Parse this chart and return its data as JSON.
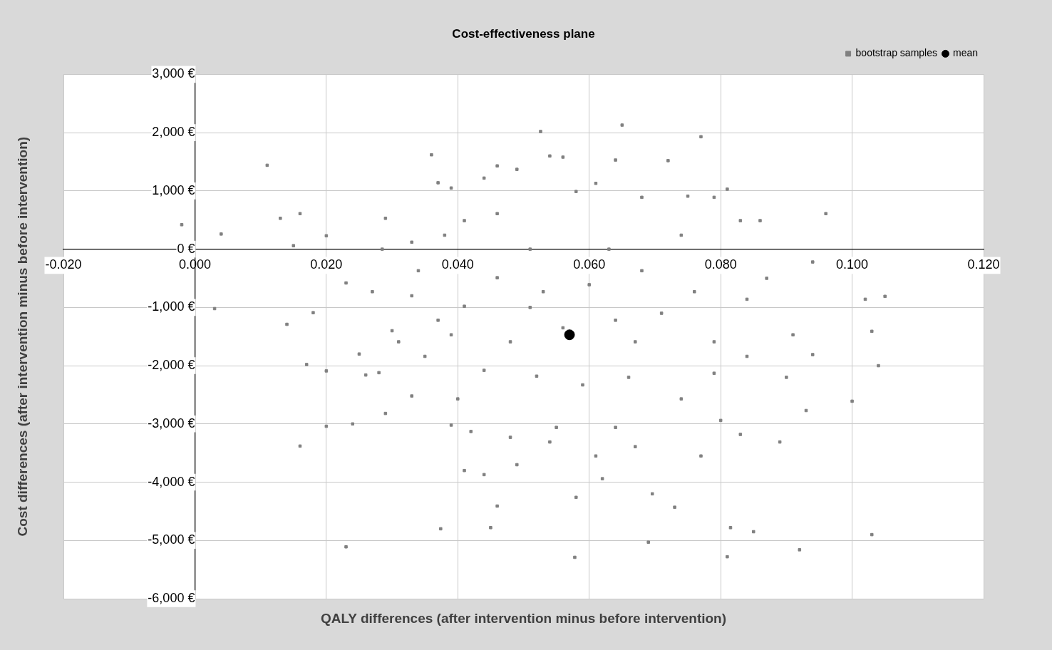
{
  "chart_data": {
    "type": "scatter",
    "title": "Cost-effectiveness plane",
    "xlabel": "QALY differences (after intervention minus before intervention)",
    "ylabel": "Cost differences (after intervention minus before intervention)",
    "xlim": [
      -0.02,
      0.12
    ],
    "xticks": [
      {
        "value": -0.02,
        "label": "-0.020"
      },
      {
        "value": 0,
        "label": "0.000"
      },
      {
        "value": 0.02,
        "label": "0.020"
      },
      {
        "value": 0.04,
        "label": "0.040"
      },
      {
        "value": 0.06,
        "label": "0.060"
      },
      {
        "value": 0.08,
        "label": "0.080"
      },
      {
        "value": 0.1,
        "label": "0.100"
      },
      {
        "value": 0.12,
        "label": "0.120"
      }
    ],
    "ylim": [
      -6000,
      3000
    ],
    "yticks": [
      {
        "value": -6000,
        "label": "-6,000 €"
      },
      {
        "value": -5000,
        "label": "-5,000 €"
      },
      {
        "value": -4000,
        "label": "-4,000 €"
      },
      {
        "value": -3000,
        "label": "-3,000 €"
      },
      {
        "value": -2000,
        "label": "-2,000 €"
      },
      {
        "value": -1000,
        "label": "-1,000 €"
      },
      {
        "value": 0,
        "label": "0 €"
      },
      {
        "value": 1000,
        "label": "1,000 €"
      },
      {
        "value": 2000,
        "label": "2,000 €"
      },
      {
        "value": 3000,
        "label": "3,000 €"
      }
    ],
    "grid": true,
    "legend": "top right",
    "series": [
      {
        "name": "bootstrap samples",
        "color": "#808080",
        "marker": "square",
        "x": [
          -0.002,
          0.004,
          0.003,
          0.011,
          0.013,
          0.014,
          0.015,
          0.016,
          0.016,
          0.017,
          0.018,
          0.02,
          0.02,
          0.02,
          0.023,
          0.023,
          0.024,
          0.025,
          0.026,
          0.028,
          0.0285,
          0.029,
          0.03,
          0.033,
          0.033,
          0.036,
          0.037,
          0.0374,
          0.039,
          0.039,
          0.041,
          0.044,
          0.046,
          0.046,
          0.049,
          0.051,
          0.052,
          0.0526,
          0.054,
          0.055,
          0.056,
          0.0578,
          0.058,
          0.061,
          0.062,
          0.065,
          0.064,
          0.068,
          0.069,
          0.072,
          0.075,
          0.077,
          0.079,
          0.081,
          0.081,
          0.0815,
          0.083,
          0.085,
          0.086,
          0.092,
          0.094,
          0.096,
          0.1,
          0.102,
          0.103,
          0.104,
          0.103,
          0.105,
          0.094,
          0.093,
          0.087,
          0.084,
          0.08,
          0.079,
          0.073,
          0.0696,
          0.067,
          0.064,
          0.061,
          0.058,
          0.054,
          0.049,
          0.048,
          0.045,
          0.044,
          0.042,
          0.04,
          0.039,
          0.037,
          0.034,
          0.041,
          0.046,
          0.051,
          0.053,
          0.056,
          0.06,
          0.064,
          0.067,
          0.071,
          0.076,
          0.079,
          0.084,
          0.09,
          0.089,
          0.074,
          0.066,
          0.059,
          0.048,
          0.044,
          0.035,
          0.031,
          0.027,
          0.029,
          0.041,
          0.077,
          0.083,
          0.091,
          0.074,
          0.068,
          0.063,
          0.046,
          0.038,
          0.033
        ],
        "values": [
          420,
          260,
          -1020,
          1440,
          530,
          -1290,
          60,
          610,
          -3380,
          -1980,
          -1090,
          230,
          -2090,
          -3040,
          -5110,
          -580,
          -3000,
          -1800,
          -2160,
          -2120,
          0,
          530,
          -1400,
          -2520,
          -800,
          1620,
          1140,
          -4800,
          1050,
          -3020,
          490,
          1220,
          -4410,
          1430,
          1370,
          -1000,
          -2180,
          2020,
          1600,
          -3060,
          1580,
          -5290,
          990,
          1130,
          -3940,
          2130,
          1530,
          890,
          -5030,
          1520,
          910,
          1930,
          890,
          1030,
          -5280,
          -4780,
          490,
          -4850,
          490,
          -5160,
          -220,
          610,
          -2610,
          -860,
          -1410,
          -2000,
          -4900,
          -810,
          -1810,
          -2770,
          -500,
          -860,
          -2940,
          -2130,
          -4430,
          -4200,
          -3390,
          -3060,
          -3550,
          -4260,
          -3310,
          -3700,
          -3230,
          -4780,
          -3870,
          -3130,
          -2570,
          -1470,
          -1220,
          -370,
          -980,
          -490,
          0,
          -730,
          -1350,
          -610,
          -1220,
          -1590,
          -1100,
          -730,
          -1590,
          -1840,
          -2200,
          -3310,
          -2570,
          -2200,
          -2330,
          -1590,
          -2080,
          -1840,
          -1590,
          -730,
          -2820,
          -3800,
          -3550,
          -3180,
          -1470,
          240,
          -370,
          0,
          610,
          240,
          120
        ]
      },
      {
        "name": "mean",
        "color": "#000000",
        "marker": "circle",
        "x": [
          0.057
        ],
        "values": [
          -1470
        ]
      }
    ]
  }
}
